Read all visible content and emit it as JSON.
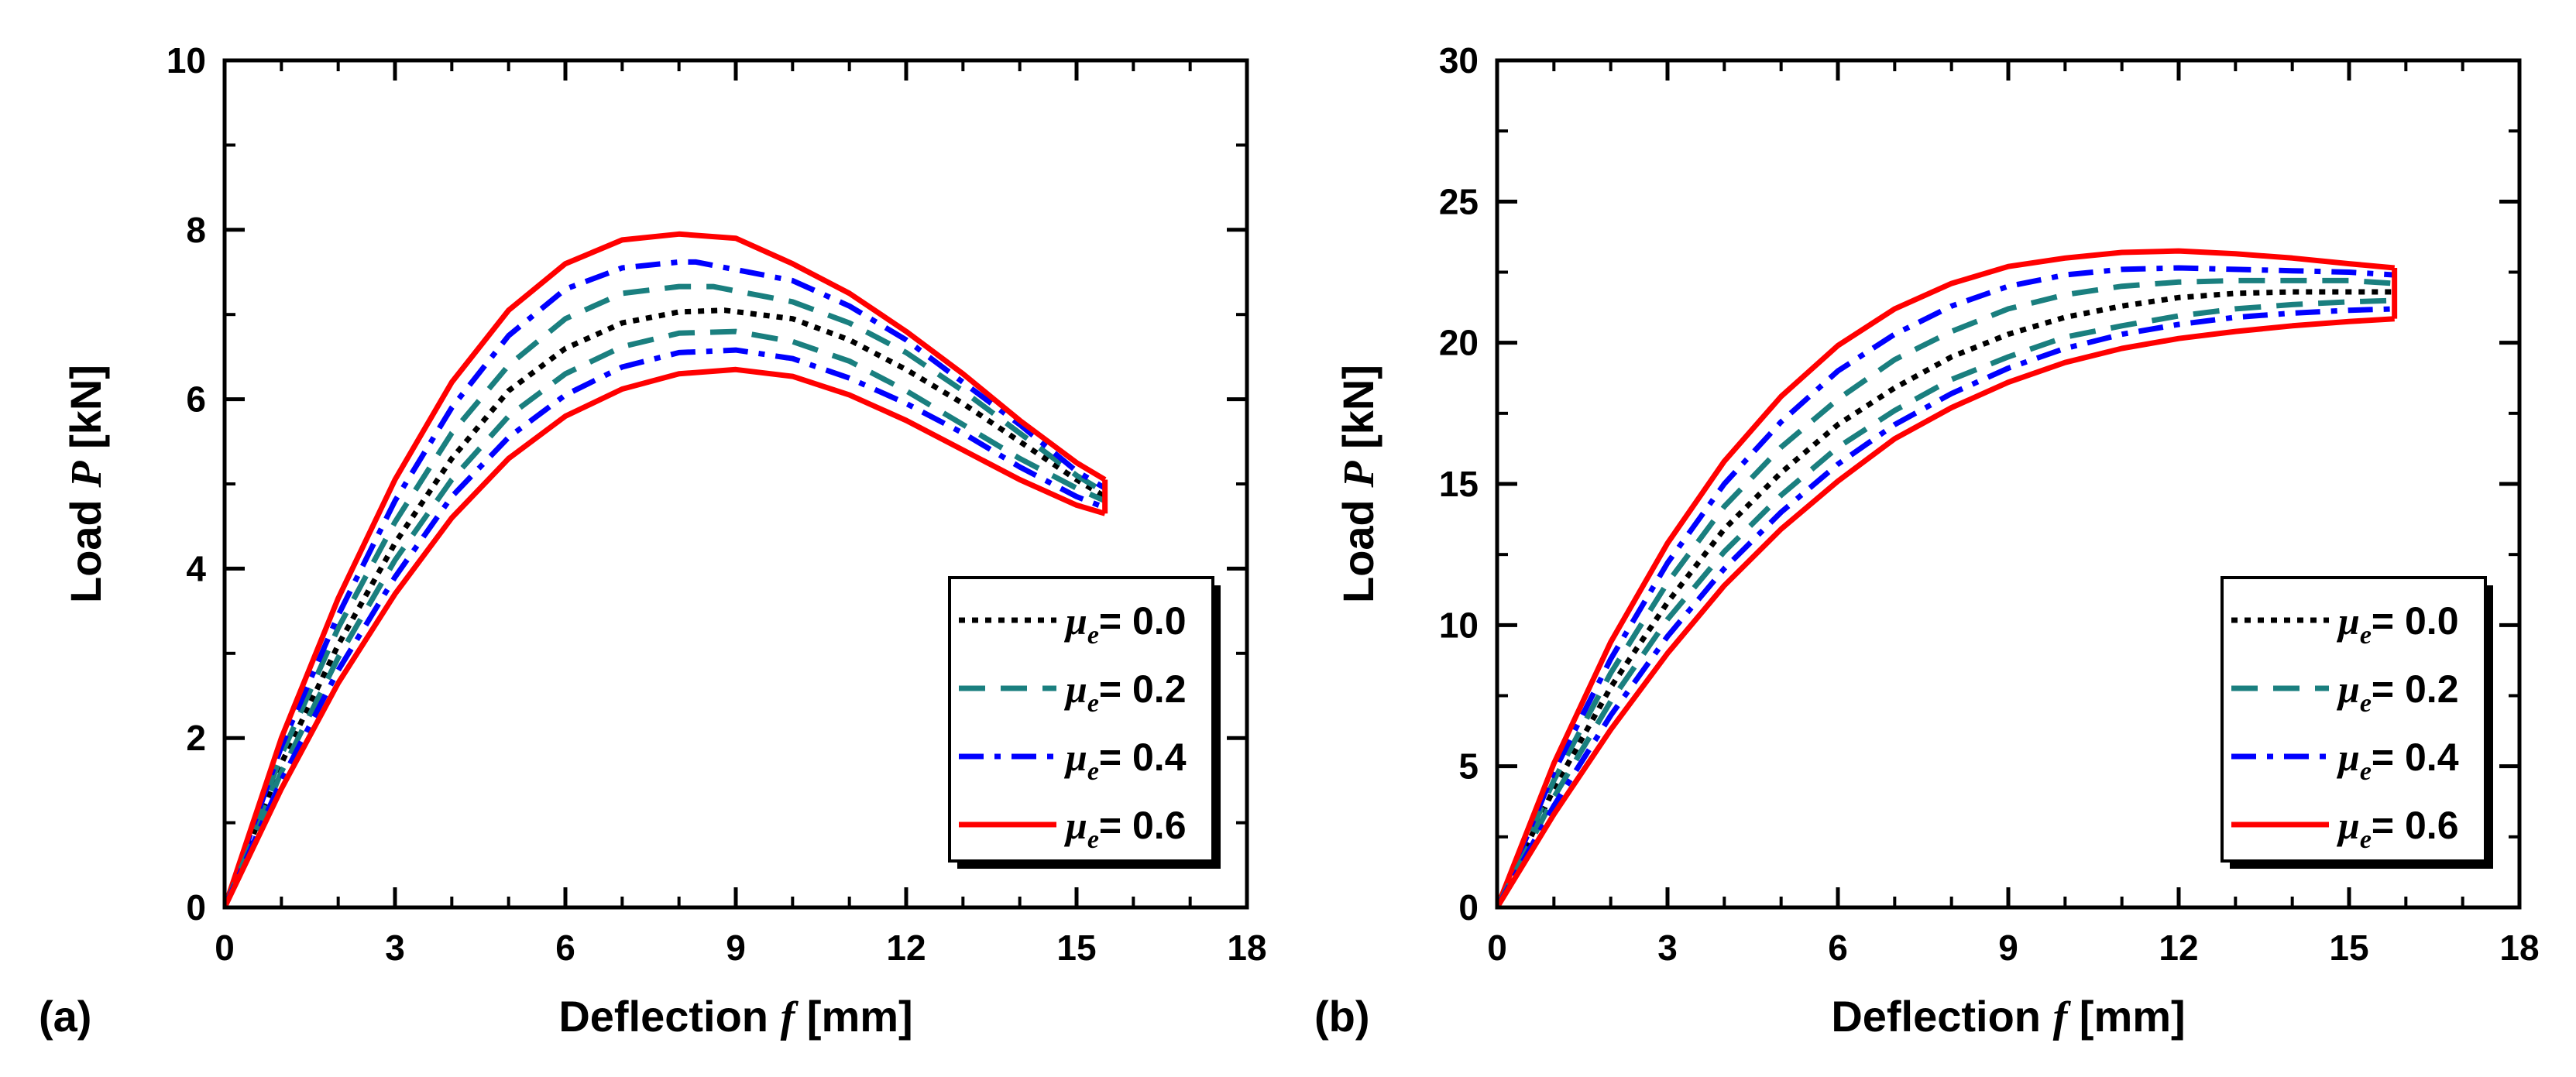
{
  "panel_labels": [
    "(a)",
    "(b)"
  ],
  "legend": {
    "symbol": "μ",
    "subscript": "e",
    "entries": [
      "= 0.0",
      "= 0.2",
      "= 0.4",
      "= 0.6"
    ]
  },
  "colors": {
    "mu_0.0": "#000000",
    "mu_0.2": "#1a7f7f",
    "mu_0.4": "#0000ff",
    "mu_0.6": "#ff0000"
  },
  "chart_data": [
    {
      "type": "line",
      "panel": "(a)",
      "xlabel_main": "Deflection",
      "xlabel_var": "f",
      "xlabel_unit": "[mm]",
      "ylabel_main": "Load",
      "ylabel_var": "P",
      "ylabel_unit": "[kN]",
      "xlim": [
        0,
        18
      ],
      "ylim": [
        0,
        10
      ],
      "xticks": [
        "0",
        "3",
        "6",
        "9",
        "12",
        "15",
        "18"
      ],
      "yticks": [
        "0",
        "2",
        "4",
        "6",
        "8",
        "10"
      ],
      "legend_position": "bottom-right",
      "series": [
        {
          "name": "μe = 0.0 upper",
          "style": "dotted",
          "color": "#000000",
          "x": [
            0,
            1,
            2,
            3,
            4,
            5,
            6,
            7,
            8,
            8.8,
            10,
            11,
            12,
            13,
            14,
            15,
            15.5
          ],
          "y": [
            0,
            1.7,
            3.1,
            4.3,
            5.3,
            6.1,
            6.6,
            6.9,
            7.03,
            7.05,
            6.95,
            6.7,
            6.35,
            5.95,
            5.5,
            5.05,
            4.85
          ]
        },
        {
          "name": "μe = 0.2 upper",
          "style": "dashed",
          "color": "#1a7f7f",
          "x": [
            0,
            1,
            2,
            3,
            4,
            5,
            6,
            7,
            8,
            8.6,
            10,
            11,
            12,
            13,
            14,
            15,
            15.5
          ],
          "y": [
            0,
            1.8,
            3.3,
            4.55,
            5.6,
            6.4,
            6.95,
            7.25,
            7.33,
            7.33,
            7.15,
            6.9,
            6.55,
            6.1,
            5.6,
            5.1,
            4.9
          ]
        },
        {
          "name": "μe = 0.4 upper",
          "style": "dashdot",
          "color": "#0000ff",
          "x": [
            0,
            1,
            2,
            3,
            4,
            5,
            6,
            7,
            8,
            8.3,
            10,
            11,
            12,
            13,
            14,
            15,
            15.5
          ],
          "y": [
            0,
            1.9,
            3.45,
            4.8,
            5.9,
            6.75,
            7.3,
            7.55,
            7.62,
            7.62,
            7.4,
            7.1,
            6.7,
            6.2,
            5.7,
            5.15,
            4.95
          ]
        },
        {
          "name": "μe = 0.6 upper",
          "style": "solid",
          "color": "#ff0000",
          "x": [
            0,
            1,
            2,
            3,
            4,
            5,
            6,
            7,
            8,
            9,
            10,
            11,
            12,
            13,
            14,
            15,
            15.5
          ],
          "y": [
            0,
            2.0,
            3.65,
            5.05,
            6.2,
            7.05,
            7.6,
            7.88,
            7.95,
            7.9,
            7.6,
            7.25,
            6.8,
            6.3,
            5.75,
            5.25,
            5.05
          ]
        },
        {
          "name": "μe = 0.2 lower",
          "style": "dashed",
          "color": "#1a7f7f",
          "x": [
            0,
            1,
            2,
            3,
            4,
            5,
            6,
            7,
            8,
            9,
            10,
            11,
            12,
            13,
            14,
            15,
            15.5
          ],
          "y": [
            0,
            1.6,
            2.95,
            4.1,
            5.05,
            5.8,
            6.3,
            6.62,
            6.78,
            6.8,
            6.68,
            6.45,
            6.1,
            5.7,
            5.3,
            4.95,
            4.8
          ]
        },
        {
          "name": "μe = 0.4 lower",
          "style": "dashdot",
          "color": "#0000ff",
          "x": [
            0,
            1,
            2,
            3,
            4,
            5,
            6,
            7,
            8,
            9,
            10,
            11,
            12,
            13,
            14,
            15,
            15.5
          ],
          "y": [
            0,
            1.5,
            2.8,
            3.9,
            4.85,
            5.55,
            6.05,
            6.38,
            6.55,
            6.58,
            6.48,
            6.25,
            5.95,
            5.6,
            5.2,
            4.85,
            4.72
          ]
        },
        {
          "name": "μe = 0.6 lower",
          "style": "solid",
          "color": "#ff0000",
          "x": [
            0,
            1,
            2,
            3,
            4,
            5,
            6,
            7,
            8,
            9,
            10,
            11,
            12,
            13,
            14,
            15,
            15.5
          ],
          "y": [
            0,
            1.4,
            2.65,
            3.7,
            4.6,
            5.3,
            5.8,
            6.12,
            6.3,
            6.35,
            6.27,
            6.05,
            5.75,
            5.4,
            5.05,
            4.75,
            4.65
          ]
        }
      ]
    },
    {
      "type": "line",
      "panel": "(b)",
      "xlabel_main": "Deflection",
      "xlabel_var": "f",
      "xlabel_unit": "[mm]",
      "ylabel_main": "Load",
      "ylabel_var": "P",
      "ylabel_unit": "[kN]",
      "xlim": [
        0,
        18
      ],
      "ylim": [
        0,
        30
      ],
      "xticks": [
        "0",
        "3",
        "6",
        "9",
        "12",
        "15",
        "18"
      ],
      "yticks": [
        "0",
        "5",
        "10",
        "15",
        "20",
        "25",
        "30"
      ],
      "legend_position": "bottom-right",
      "series": [
        {
          "name": "μe = 0.0 upper",
          "style": "dotted",
          "color": "#000000",
          "x": [
            0,
            1,
            2,
            3,
            4,
            5,
            6,
            7,
            8,
            9,
            10,
            11,
            12,
            13,
            14,
            15,
            15.8
          ],
          "y": [
            0,
            4.2,
            7.8,
            10.8,
            13.4,
            15.4,
            17.1,
            18.4,
            19.5,
            20.3,
            20.9,
            21.3,
            21.6,
            21.75,
            21.8,
            21.8,
            21.8
          ]
        },
        {
          "name": "μe = 0.2 upper",
          "style": "dashed",
          "color": "#1a7f7f",
          "x": [
            0,
            1,
            2,
            3,
            4,
            5,
            6,
            7,
            8,
            9,
            10,
            11,
            12,
            13,
            14,
            15,
            15.8
          ],
          "y": [
            0,
            4.5,
            8.3,
            11.5,
            14.2,
            16.3,
            18.0,
            19.4,
            20.4,
            21.2,
            21.7,
            22.0,
            22.15,
            22.2,
            22.2,
            22.2,
            22.1
          ]
        },
        {
          "name": "μe = 0.4 upper",
          "style": "dashdot",
          "color": "#0000ff",
          "x": [
            0,
            1,
            2,
            3,
            4,
            5,
            6,
            7,
            8,
            9,
            10,
            11,
            12,
            13,
            14,
            15,
            15.8
          ],
          "y": [
            0,
            4.8,
            8.8,
            12.2,
            15.0,
            17.2,
            19.0,
            20.3,
            21.3,
            22.0,
            22.4,
            22.6,
            22.65,
            22.6,
            22.55,
            22.5,
            22.4
          ]
        },
        {
          "name": "μe = 0.6 upper",
          "style": "solid",
          "color": "#ff0000",
          "x": [
            0,
            1,
            2,
            3,
            4,
            5,
            6,
            7,
            8,
            9,
            10,
            11,
            12,
            13,
            14,
            15,
            15.8
          ],
          "y": [
            0,
            5.1,
            9.4,
            12.9,
            15.8,
            18.1,
            19.9,
            21.2,
            22.1,
            22.7,
            23.0,
            23.2,
            23.25,
            23.15,
            23.0,
            22.8,
            22.65
          ]
        },
        {
          "name": "μe = 0.2 lower",
          "style": "dashed",
          "color": "#1a7f7f",
          "x": [
            0,
            1,
            2,
            3,
            4,
            5,
            6,
            7,
            8,
            9,
            10,
            11,
            12,
            13,
            14,
            15,
            15.8
          ],
          "y": [
            0,
            3.9,
            7.3,
            10.2,
            12.6,
            14.6,
            16.3,
            17.6,
            18.7,
            19.5,
            20.2,
            20.6,
            20.95,
            21.2,
            21.35,
            21.45,
            21.5
          ]
        },
        {
          "name": "μe = 0.4 lower",
          "style": "dashdot",
          "color": "#0000ff",
          "x": [
            0,
            1,
            2,
            3,
            4,
            5,
            6,
            7,
            8,
            9,
            10,
            11,
            12,
            13,
            14,
            15,
            15.8
          ],
          "y": [
            0,
            3.6,
            6.8,
            9.6,
            12.0,
            14.0,
            15.7,
            17.1,
            18.2,
            19.1,
            19.8,
            20.3,
            20.65,
            20.9,
            21.05,
            21.15,
            21.2
          ]
        },
        {
          "name": "μe = 0.6 lower",
          "style": "solid",
          "color": "#ff0000",
          "x": [
            0,
            1,
            2,
            3,
            4,
            5,
            6,
            7,
            8,
            9,
            10,
            11,
            12,
            13,
            14,
            15,
            15.8
          ],
          "y": [
            0,
            3.3,
            6.3,
            9.0,
            11.4,
            13.4,
            15.1,
            16.6,
            17.7,
            18.6,
            19.3,
            19.8,
            20.15,
            20.4,
            20.6,
            20.75,
            20.85
          ]
        }
      ]
    }
  ]
}
